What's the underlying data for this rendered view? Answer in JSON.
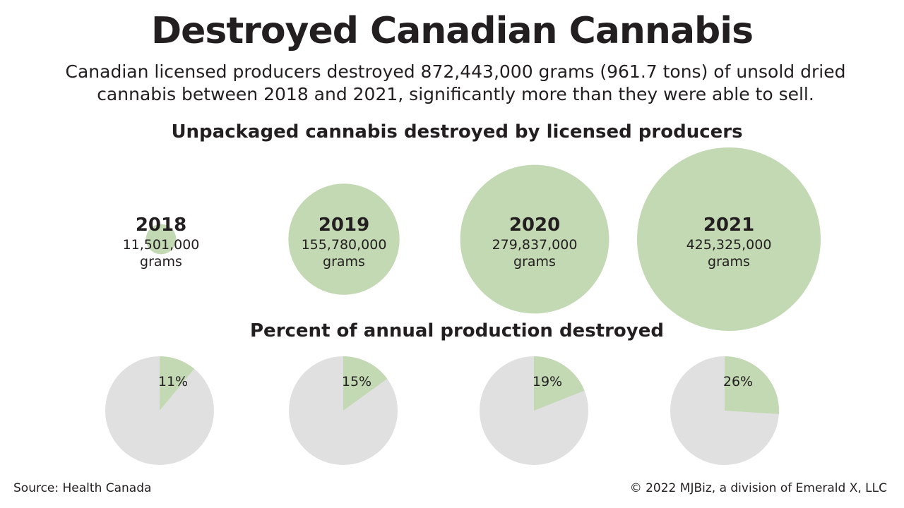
{
  "title": "Destroyed Canadian Cannabis",
  "subtitle": "Canadian licensed producers destroyed 872,443,000 grams (961.7 tons) of unsold dried cannabis between 2018 and 2021, significantly more than they were able to sell.",
  "footer": {
    "source": "Source: Health Canada",
    "credit": "© 2022 MJBiz, a division of Emerald X, LLC"
  },
  "colors": {
    "accent_green": "#c3d9b4",
    "pie_gray": "#e0e0e0",
    "text": "#231f20"
  },
  "chart_data": [
    {
      "type": "bubble",
      "title": "Unpackaged cannabis destroyed by licensed producers",
      "categories": [
        "2018",
        "2019",
        "2020",
        "2021"
      ],
      "values": [
        11501000,
        155780000,
        279837000,
        425325000
      ],
      "value_labels": [
        "11,501,000",
        "155,780,000",
        "279,837,000",
        "425,325,000"
      ],
      "unit": "grams"
    },
    {
      "type": "pie",
      "title": "Percent of annual production destroyed",
      "categories": [
        "2018",
        "2019",
        "2020",
        "2021"
      ],
      "values": [
        11,
        15,
        19,
        26
      ],
      "value_labels": [
        "11%",
        "15%",
        "19%",
        "26%"
      ]
    }
  ]
}
